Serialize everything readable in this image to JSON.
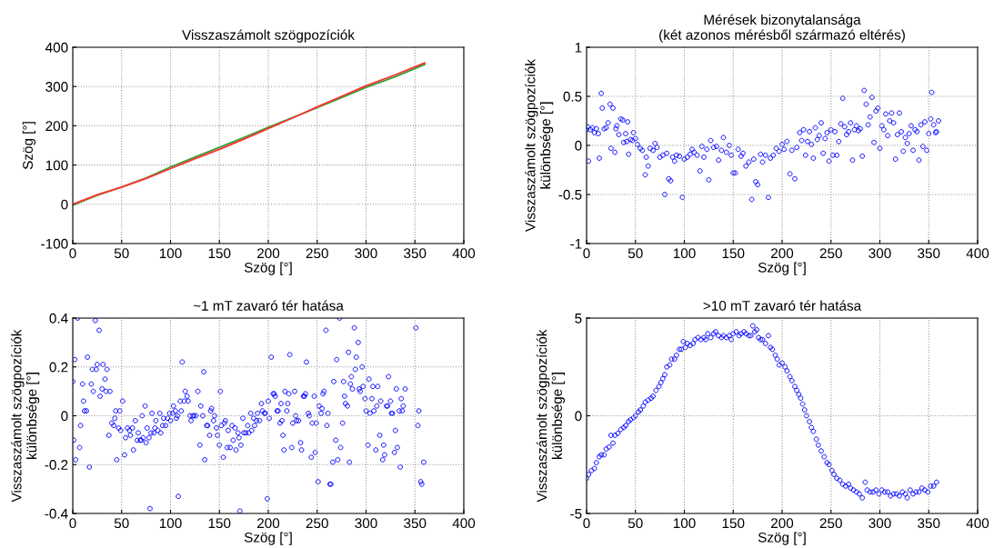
{
  "chart_data": [
    {
      "type": "line",
      "title": "Visszaszámolt szögpozíciók",
      "xlabel": "Szög [°]",
      "ylabel": "Szög [°]",
      "xlim": [
        0,
        400
      ],
      "xticks": [
        0,
        50,
        100,
        150,
        200,
        250,
        300,
        350,
        400
      ],
      "ylim": [
        -100,
        400
      ],
      "yticks": [
        -100,
        0,
        100,
        200,
        300,
        400
      ],
      "grid": true,
      "marker": "none",
      "line_style": "solid",
      "series": [
        {
          "color": "#33a033",
          "x": [
            0,
            25,
            50,
            75,
            100,
            125,
            150,
            175,
            200,
            225,
            250,
            275,
            300,
            330,
            360
          ],
          "values": [
            -2,
            23,
            44,
            67,
            95,
            120,
            145,
            170,
            196,
            221,
            246,
            272,
            298,
            325,
            356
          ]
        },
        {
          "color": "#ff3333",
          "x": [
            0,
            25,
            50,
            75,
            100,
            125,
            150,
            175,
            200,
            225,
            250,
            275,
            300,
            330,
            360
          ],
          "values": [
            0,
            24,
            44,
            66,
            91,
            116,
            140,
            166,
            193,
            220,
            248,
            275,
            302,
            330,
            360
          ]
        }
      ]
    },
    {
      "type": "scatter",
      "title": "Mérések bizonytalansága\n(két azonos mérésből származó eltérés)",
      "xlabel": "Szög [°]",
      "ylabel": "Visszaszámolt szögpozíciók\nkülönbsége [°]",
      "xlim": [
        0,
        400
      ],
      "xticks": [
        0,
        50,
        100,
        150,
        200,
        250,
        300,
        350,
        400
      ],
      "ylim": [
        -1,
        1
      ],
      "yticks": [
        -1,
        -0.5,
        0,
        0.5,
        1
      ],
      "grid": true,
      "marker": "circle",
      "series": [
        {
          "color": "#0000ff",
          "x": [
            0,
            1,
            2,
            4,
            6,
            8,
            10,
            12,
            13,
            15,
            16,
            18,
            20,
            22,
            24,
            25,
            27,
            29,
            30,
            31,
            33,
            35,
            37,
            38,
            40,
            41,
            42,
            43,
            45,
            47,
            48,
            50,
            52,
            55,
            57,
            60,
            61,
            63,
            65,
            68,
            70,
            72,
            75,
            78,
            80,
            82,
            84,
            86,
            88,
            90,
            92,
            95,
            98,
            100,
            103,
            106,
            108,
            110,
            113,
            116,
            118,
            120,
            123,
            125,
            127,
            130,
            133,
            135,
            138,
            140,
            143,
            146,
            148,
            150,
            152,
            155,
            158,
            160,
            163,
            166,
            169,
            171,
            173,
            175,
            178,
            180,
            183,
            186,
            188,
            191,
            194,
            197,
            200,
            202,
            205,
            208,
            210,
            213,
            215,
            218,
            220,
            222,
            224,
            226,
            228,
            230,
            232,
            234,
            236,
            238,
            240,
            242,
            244,
            246,
            248,
            250,
            252,
            254,
            256,
            258,
            260,
            262,
            264,
            266,
            268,
            270,
            272,
            274,
            276,
            278,
            280,
            282,
            284,
            286,
            288,
            290,
            292,
            294,
            296,
            298,
            300,
            302,
            304,
            306,
            308,
            310,
            312,
            314,
            316,
            318,
            320,
            322,
            324,
            326,
            328,
            330,
            332,
            334,
            336,
            338,
            340,
            342,
            344,
            346,
            348,
            350,
            352,
            353,
            355,
            357,
            358,
            360
          ],
          "values": [
            0.16,
            0.19,
            -0.16,
            0.16,
            0.18,
            0.13,
            0.17,
            0.12,
            -0.13,
            0.53,
            0.38,
            0.17,
            0.18,
            0.23,
            0.42,
            -0.03,
            0.38,
            -0.07,
            0.17,
            0.2,
            0.11,
            0.27,
            0.26,
            0.03,
            0.12,
            0.04,
            0.24,
            -0.09,
            0.06,
            0.05,
            0.13,
            0.07,
            0.01,
            -0.03,
            -0.05,
            -0.3,
            -0.12,
            -0.21,
            -0.03,
            -0.05,
            0.02,
            -0.02,
            -0.12,
            -0.1,
            -0.5,
            -0.08,
            -0.34,
            -0.36,
            -0.12,
            -0.16,
            -0.1,
            -0.11,
            -0.53,
            -0.14,
            -0.12,
            -0.09,
            -0.04,
            -0.07,
            -0.1,
            -0.26,
            -0.01,
            -0.12,
            -0.04,
            -0.35,
            0.05,
            -0.02,
            -0.01,
            -0.15,
            -0.05,
            0.08,
            -0.07,
            0.0,
            -0.1,
            -0.28,
            -0.28,
            -0.04,
            -0.11,
            -0.08,
            -0.21,
            -0.17,
            -0.55,
            -0.14,
            -0.37,
            -0.4,
            -0.09,
            -0.17,
            -0.1,
            -0.53,
            -0.13,
            -0.1,
            -0.03,
            -0.06,
            0.01,
            -0.04,
            0.04,
            -0.29,
            -0.05,
            -0.34,
            -0.02,
            0.13,
            0.05,
            0.16,
            -0.1,
            0.04,
            0.14,
            0.01,
            -0.13,
            0.18,
            0.06,
            0.1,
            0.23,
            -0.08,
            0.07,
            0.13,
            -0.16,
            0.16,
            -0.1,
            0.14,
            -0.1,
            0.04,
            0.22,
            0.48,
            0.19,
            0.11,
            0.14,
            0.23,
            -0.15,
            0.16,
            0.2,
            0.15,
            0.17,
            -0.11,
            0.56,
            0.42,
            0.21,
            0.29,
            0.49,
            0.03,
            0.35,
            0.38,
            -0.03,
            0.2,
            0.16,
            0.32,
            0.1,
            0.25,
            0.33,
            0.23,
            -0.14,
            0.11,
            0.33,
            0.14,
            -0.06,
            0.08,
            0.02,
            0.12,
            0.2,
            -0.05,
            0.16,
            0.14,
            -0.15,
            0.21,
            -0.01,
            0.24,
            -0.05,
            0.12,
            0.27,
            0.54,
            0.21,
            0.13,
            0.14,
            0.25
          ]
        }
      ]
    },
    {
      "type": "scatter",
      "title": "~1 mT zavaró tér hatása",
      "xlabel": "Szög [°]",
      "ylabel": "Visszaszámolt szögpozíciók\nkülönbsége [°]",
      "xlim": [
        0,
        400
      ],
      "xticks": [
        0,
        50,
        100,
        150,
        200,
        250,
        300,
        350,
        400
      ],
      "ylim": [
        -0.4,
        0.4
      ],
      "yticks": [
        -0.4,
        -0.2,
        0,
        0.2,
        0.4
      ],
      "grid": true,
      "marker": "circle",
      "series": [
        {
          "color": "#0000ff",
          "x": [
            0,
            1,
            2,
            3,
            5,
            7,
            8,
            10,
            11,
            12,
            14,
            15,
            17,
            19,
            20,
            21,
            23,
            24,
            25,
            27,
            28,
            30,
            31,
            33,
            34,
            35,
            37,
            38,
            40,
            42,
            43,
            44,
            45,
            47,
            48,
            49,
            51,
            53,
            54,
            56,
            58,
            59,
            61,
            62,
            64,
            66,
            67,
            69,
            70,
            71,
            72,
            74,
            75,
            76,
            78,
            79,
            80,
            81,
            83,
            84,
            85,
            87,
            89,
            90,
            92,
            93,
            95,
            97,
            99,
            100,
            102,
            103,
            105,
            106,
            107,
            108,
            110,
            111,
            112,
            114,
            115,
            117,
            118,
            120,
            121,
            123,
            124,
            126,
            128,
            130,
            131,
            133,
            134,
            135,
            137,
            138,
            140,
            141,
            142,
            144,
            145,
            147,
            148,
            150,
            151,
            152,
            154,
            155,
            156,
            158,
            159,
            161,
            163,
            164,
            166,
            167,
            169,
            170,
            171,
            172,
            174,
            175,
            177,
            179,
            180,
            182,
            183,
            185,
            186,
            188,
            189,
            191,
            193,
            194,
            196,
            197,
            199,
            200,
            201,
            203,
            205,
            206,
            207,
            209,
            210,
            212,
            213,
            214,
            215,
            216,
            217,
            219,
            220,
            221,
            222,
            224,
            225,
            227,
            228,
            229,
            231,
            233,
            234,
            236,
            237,
            238,
            239,
            241,
            242,
            244,
            245,
            247,
            248,
            249,
            251,
            252,
            254,
            255,
            256,
            257,
            259,
            260,
            261,
            263,
            264,
            266,
            267,
            269,
            270,
            271,
            273,
            274,
            276,
            277,
            278,
            279,
            281,
            282,
            283,
            284,
            285,
            286,
            288,
            289,
            290,
            292,
            293,
            294,
            296,
            297,
            299,
            300,
            302,
            303,
            304,
            306,
            307,
            308,
            310,
            311,
            312,
            314,
            315,
            317,
            318,
            319,
            321,
            322,
            323,
            325,
            326,
            327,
            329,
            330,
            331,
            332,
            334,
            335,
            336,
            337,
            338,
            340,
            351,
            353,
            354,
            356,
            357,
            359
          ],
          "values": [
            0.14,
            -0.1,
            0.23,
            -0.18,
            0.4,
            -0.13,
            -0.04,
            0.13,
            0.06,
            0.02,
            0.02,
            0.24,
            -0.21,
            0.13,
            0.19,
            0.1,
            0.39,
            0.19,
            0.21,
            0.35,
            0.08,
            0.11,
            0.21,
            0.15,
            0.1,
            0.19,
            -0.08,
            0.1,
            -0.03,
            -0.04,
            -0.01,
            0.02,
            -0.18,
            -0.05,
            0.02,
            -0.06,
            0.06,
            -0.16,
            -0.09,
            -0.05,
            -0.06,
            -0.08,
            -0.05,
            -0.14,
            -0.02,
            -0.1,
            -0.07,
            -0.1,
            -0.1,
            0.0,
            -0.09,
            0.04,
            -0.11,
            -0.05,
            -0.09,
            -0.38,
            -0.07,
            0.01,
            -0.07,
            -0.05,
            -0.02,
            -0.06,
            0.01,
            -0.07,
            -0.04,
            -0.01,
            -0.04,
            -0.01,
            0.01,
            -0.02,
            0.01,
            0.04,
            0.02,
            -0.01,
            0.0,
            -0.33,
            0.06,
            0.02,
            0.22,
            0.06,
            0.1,
            0.08,
            0.06,
            0.0,
            -0.02,
            0.0,
            0.0,
            0.0,
            0.1,
            -0.12,
            0.04,
            0.0,
            0.18,
            -0.18,
            -0.04,
            -0.04,
            -0.08,
            0.02,
            0.03,
            -0.02,
            0.0,
            -0.05,
            -0.08,
            -0.12,
            0.1,
            -0.04,
            -0.17,
            -0.03,
            -0.02,
            -0.13,
            -0.06,
            -0.13,
            -0.04,
            -0.1,
            -0.05,
            -0.14,
            -0.07,
            -0.09,
            -0.39,
            -0.12,
            -0.01,
            -0.07,
            -0.07,
            -0.04,
            -0.07,
            0.01,
            -0.06,
            -0.01,
            -0.04,
            -0.02,
            0.01,
            -0.02,
            0.05,
            0.02,
            0.01,
            0.01,
            -0.34,
            0.06,
            -0.01,
            0.24,
            0.09,
            0.09,
            0.08,
            0.02,
            0.02,
            -0.03,
            0.05,
            -0.02,
            -0.08,
            -0.14,
            0.1,
            0.02,
            0.05,
            0.09,
            0.25,
            -0.13,
            -0.03,
            0.1,
            0.0,
            -0.02,
            -0.02,
            -0.11,
            -0.14,
            0.08,
            0.08,
            0.09,
            0.22,
            0.01,
            0.0,
            -0.17,
            -0.03,
            0.08,
            -0.15,
            -0.03,
            -0.27,
            0.04,
            0.01,
            0.03,
            0.09,
            0.1,
            0.35,
            -0.04,
            0.01,
            -0.28,
            -0.28,
            -0.19,
            0.14,
            -0.1,
            0.23,
            -0.18,
            0.4,
            -0.13,
            -0.03,
            0.14,
            0.08,
            0.05,
            0.04,
            0.26,
            -0.19,
            0.13,
            0.16,
            0.11,
            0.36,
            0.19,
            0.24,
            0.3,
            0.11,
            0.1,
            0.2,
            0.12,
            0.07,
            0.02,
            -0.12,
            0.15,
            0.01,
            0.07,
            0.12,
            0.02,
            -0.14,
            0.04,
            0.12,
            -0.08,
            0.06,
            -0.18,
            -0.12,
            -0.16,
            0.04,
            0.04,
            0.16,
            0.06,
            0.01,
            0.01,
            -0.15,
            -0.06,
            0.11,
            -0.13,
            0.02,
            -0.21,
            0.07,
            0.02,
            0.04,
            0.11,
            0.36,
            -0.04,
            0.02,
            -0.27,
            -0.28,
            -0.19
          ]
        }
      ]
    },
    {
      "type": "scatter",
      "title": ">10 mT zavaró tér hatása",
      "xlabel": "Szög [°]",
      "ylabel": "Visszaszámolt szögpozíciók\nkülönbsége [°]",
      "xlim": [
        0,
        400
      ],
      "xticks": [
        0,
        50,
        100,
        150,
        200,
        250,
        300,
        350,
        400
      ],
      "ylim": [
        -5,
        5
      ],
      "yticks": [
        -5,
        0,
        5
      ],
      "grid": true,
      "marker": "circle",
      "series": [
        {
          "color": "#0000ff",
          "x": [
            0,
            2,
            5,
            8,
            10,
            13,
            15,
            18,
            20,
            23,
            25,
            27,
            29,
            32,
            35,
            38,
            40,
            43,
            45,
            48,
            50,
            53,
            55,
            58,
            60,
            63,
            66,
            68,
            71,
            74,
            76,
            78,
            80,
            82,
            85,
            87,
            90,
            92,
            95,
            97,
            99,
            101,
            103,
            106,
            109,
            111,
            114,
            117,
            120,
            122,
            124,
            127,
            130,
            132,
            135,
            138,
            140,
            143,
            146,
            148,
            150,
            153,
            156,
            158,
            161,
            163,
            166,
            168,
            170,
            172,
            174,
            176,
            178,
            180,
            183,
            186,
            188,
            190,
            193,
            195,
            197,
            200,
            203,
            205,
            208,
            210,
            213,
            215,
            217,
            219,
            221,
            223,
            225,
            228,
            230,
            232,
            235,
            237,
            240,
            243,
            246,
            248,
            251,
            253,
            256,
            259,
            262,
            265,
            268,
            270,
            273,
            276,
            279,
            282,
            285,
            287,
            290,
            293,
            296,
            299,
            302,
            305,
            308,
            311,
            314,
            317,
            320,
            323,
            326,
            328,
            331,
            334,
            337,
            340,
            343,
            346,
            349,
            352,
            355,
            358
          ],
          "values": [
            -3.2,
            -3.0,
            -2.8,
            -2.7,
            -2.4,
            -2.1,
            -2.0,
            -2.0,
            -1.7,
            -1.6,
            -1.0,
            -1.4,
            -1.0,
            -0.9,
            -0.7,
            -0.6,
            -0.5,
            -0.3,
            -0.2,
            -0.1,
            0.0,
            0.2,
            0.3,
            0.5,
            0.7,
            0.8,
            0.9,
            1.0,
            1.3,
            1.5,
            1.7,
            1.9,
            2.1,
            2.5,
            2.6,
            2.9,
            2.9,
            3.1,
            3.4,
            3.4,
            3.8,
            3.5,
            3.7,
            3.6,
            3.7,
            3.9,
            4.0,
            3.9,
            4.0,
            3.9,
            4.2,
            4.0,
            4.2,
            4.3,
            4.1,
            4.0,
            4.1,
            4.0,
            4.1,
            3.9,
            4.2,
            4.3,
            4.1,
            4.2,
            4.3,
            4.2,
            4.1,
            4.1,
            4.6,
            4.3,
            4.4,
            4.0,
            3.9,
            3.9,
            3.7,
            4.1,
            3.5,
            3.4,
            3.1,
            2.9,
            2.6,
            2.7,
            2.5,
            2.3,
            2.0,
            1.8,
            1.5,
            1.3,
            1.1,
            0.9,
            0.6,
            0.3,
            0.0,
            -0.3,
            -0.6,
            -0.8,
            -1.2,
            -1.5,
            -1.8,
            -2.1,
            -2.4,
            -2.5,
            -2.8,
            -3.0,
            -3.2,
            -3.3,
            -3.5,
            -3.6,
            -3.5,
            -3.7,
            -3.8,
            -3.9,
            -4.0,
            -4.2,
            -3.4,
            -3.8,
            -3.9,
            -3.9,
            -3.8,
            -4.0,
            -3.8,
            -3.9,
            -3.9,
            -4.1,
            -4.0,
            -4.0,
            -4.1,
            -3.9,
            -4.0,
            -4.2,
            -3.8,
            -4.0,
            -3.9,
            -3.9,
            -3.7,
            -3.8,
            -3.9,
            -3.6,
            -3.6,
            -3.4
          ]
        }
      ]
    }
  ]
}
